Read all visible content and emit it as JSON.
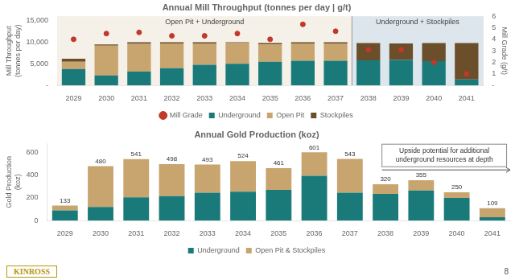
{
  "chart_data": [
    {
      "type": "bar",
      "title": "Annual Mill Throughput (tonnes per day | g/t)",
      "categories": [
        "2029",
        "2030",
        "2031",
        "2032",
        "2033",
        "2034",
        "2035",
        "2036",
        "2037",
        "2038",
        "2039",
        "2040",
        "2041"
      ],
      "series": [
        {
          "name": "Underground",
          "color": "#1a7a7a",
          "values": [
            3800,
            2300,
            3200,
            4000,
            4800,
            5000,
            5500,
            5700,
            5700,
            5800,
            5900,
            5600,
            1400
          ]
        },
        {
          "name": "Open Pit",
          "color": "#c8a46e",
          "values": [
            1700,
            6900,
            6400,
            5700,
            4900,
            4800,
            4000,
            4000,
            4000,
            0,
            0,
            0,
            0
          ]
        },
        {
          "name": "Stockpiles",
          "color": "#6b4e2a",
          "values": [
            700,
            300,
            400,
            300,
            300,
            200,
            300,
            300,
            300,
            4000,
            3800,
            4200,
            8400
          ]
        },
        {
          "name": "Mill Grade",
          "type": "scatter",
          "marker": "circle",
          "color": "#c0392b",
          "axis": "y2",
          "values": [
            4.0,
            4.5,
            4.6,
            4.3,
            4.3,
            4.5,
            4.0,
            5.3,
            4.7,
            3.1,
            3.1,
            2.0,
            1.0
          ]
        }
      ],
      "stacked": true,
      "ylabel": "Mill Throughput\n(tonnes per day)",
      "y2label": "Mill Grade (g/t)",
      "ylim": [
        0,
        16000
      ],
      "yticks": [
        {
          "value": 0,
          "label": "-"
        },
        {
          "value": 5000,
          "label": "5,000"
        },
        {
          "value": 10000,
          "label": "10,000"
        },
        {
          "value": 15000,
          "label": "15,000"
        }
      ],
      "y2lim": [
        0,
        6
      ],
      "y2ticks": [
        {
          "value": 0,
          "label": "-"
        },
        1,
        2,
        3,
        4,
        5,
        6
      ],
      "grid": false,
      "legend": "bottom",
      "annotations": [
        {
          "text": "Open Pit + Underground",
          "from": "2029",
          "to": "2037",
          "color": "#f5f0e8"
        },
        {
          "text": "Underground + Stockpiles",
          "from": "2038",
          "to": "2041",
          "color": "#dde6ed"
        }
      ]
    },
    {
      "type": "bar",
      "title": "Annual Gold Production (koz)",
      "categories": [
        "2029",
        "2030",
        "2031",
        "2032",
        "2033",
        "2034",
        "2035",
        "2036",
        "2037",
        "2038",
        "2039",
        "2040",
        "2041"
      ],
      "series": [
        {
          "name": "Underground",
          "color": "#1a7a7a",
          "values": [
            90,
            120,
            205,
            215,
            245,
            255,
            270,
            395,
            245,
            235,
            265,
            200,
            30
          ]
        },
        {
          "name": "Open Pit & Stockpiles",
          "color": "#c8a46e",
          "values": [
            43,
            360,
            336,
            283,
            248,
            269,
            191,
            206,
            298,
            85,
            90,
            50,
            79
          ]
        }
      ],
      "totals": [
        133,
        480,
        541,
        498,
        493,
        524,
        461,
        601,
        543,
        320,
        355,
        250,
        109
      ],
      "stacked": true,
      "ylabel": "Gold Production\n(koz)",
      "ylim": [
        0,
        680
      ],
      "yticks": [
        0,
        200,
        400,
        600
      ],
      "grid": false,
      "legend": "bottom",
      "annotations": [
        {
          "text": "Upside potential for additional\nunderground resources at depth",
          "from": "2038",
          "to": "2041"
        },
        {
          "text": "KINROSS",
          "color": "#b8960a"
        },
        {
          "text": "8"
        }
      ]
    }
  ]
}
